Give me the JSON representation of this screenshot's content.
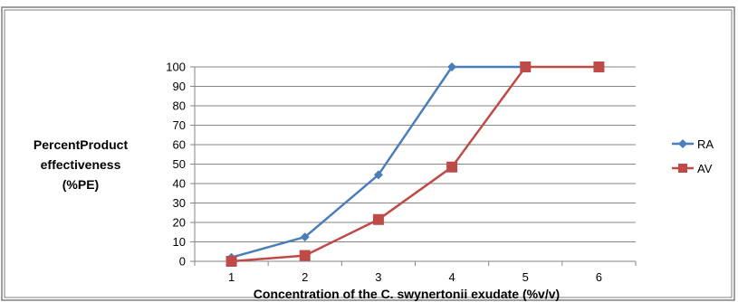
{
  "chart_data": {
    "type": "line",
    "title": "",
    "xlabel": "Concentration of the C. swynertonii exudate (%v/v)",
    "ylabel": "PercentProduct effectiveness (%PE)",
    "ylabel_lines": [
      "PercentProduct",
      "effectiveness",
      "(%PE)"
    ],
    "categories": [
      "1",
      "2",
      "3",
      "4",
      "5",
      "6"
    ],
    "ylim": [
      0,
      100
    ],
    "yticks": [
      "0",
      "10",
      "20",
      "30",
      "40",
      "50",
      "60",
      "70",
      "80",
      "90",
      "100"
    ],
    "grid": true,
    "legend_position": "right",
    "series": [
      {
        "name": "RA",
        "color": "#4a7ebb",
        "marker": "diamond",
        "x": [
          1,
          2,
          3,
          4,
          5,
          6
        ],
        "values": [
          2,
          12.5,
          44.5,
          100,
          100,
          null
        ]
      },
      {
        "name": "AV",
        "color": "#be4b48",
        "marker": "square",
        "x": [
          1,
          2,
          3,
          4,
          5,
          6
        ],
        "values": [
          0,
          3,
          21.5,
          48.5,
          100,
          100
        ]
      }
    ]
  }
}
